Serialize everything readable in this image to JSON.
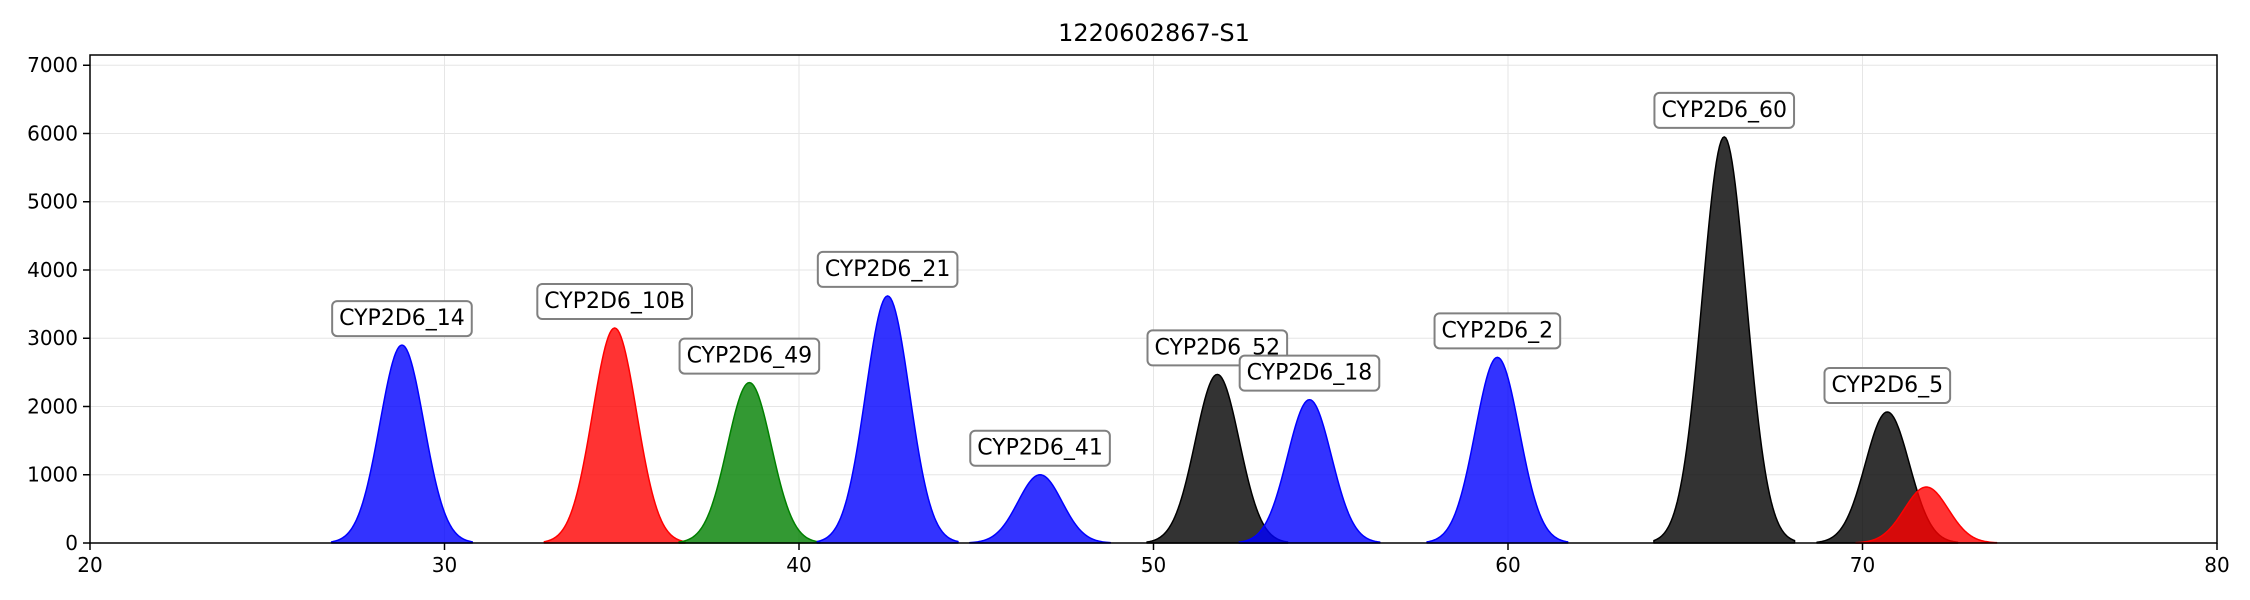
{
  "chart_data": {
    "type": "area",
    "title": "1220602867-S1",
    "xlabel": "",
    "ylabel": "",
    "xlim": [
      20,
      80
    ],
    "ylim": [
      0,
      7150
    ],
    "xticks": [
      20,
      30,
      40,
      50,
      60,
      70,
      80
    ],
    "yticks": [
      0,
      1000,
      2000,
      3000,
      4000,
      5000,
      6000,
      7000
    ],
    "grid": true,
    "legend": "none",
    "colors": {
      "blue": "#0000ff",
      "red": "#ff0000",
      "green": "#008000",
      "black": "#000000"
    },
    "peaks": [
      {
        "label": "CYP2D6_14",
        "center": 28.8,
        "height": 2900,
        "sigma": 0.62,
        "color": "#0000ff"
      },
      {
        "label": "CYP2D6_10B",
        "center": 34.8,
        "height": 3150,
        "sigma": 0.62,
        "color": "#ff0000"
      },
      {
        "label": "CYP2D6_49",
        "center": 38.6,
        "height": 2350,
        "sigma": 0.62,
        "color": "#008000"
      },
      {
        "label": "CYP2D6_21",
        "center": 42.5,
        "height": 3620,
        "sigma": 0.62,
        "color": "#0000ff"
      },
      {
        "label": "CYP2D6_41",
        "center": 46.8,
        "height": 1000,
        "sigma": 0.62,
        "color": "#0000ff"
      },
      {
        "label": "CYP2D6_52",
        "center": 51.8,
        "height": 2470,
        "sigma": 0.62,
        "color": "#000000"
      },
      {
        "label": "CYP2D6_18",
        "center": 54.4,
        "height": 2100,
        "sigma": 0.62,
        "color": "#0000ff"
      },
      {
        "label": "CYP2D6_2",
        "center": 59.7,
        "height": 2720,
        "sigma": 0.62,
        "color": "#0000ff"
      },
      {
        "label": "CYP2D6_60",
        "center": 66.1,
        "height": 5950,
        "sigma": 0.62,
        "color": "#000000"
      },
      {
        "label": "CYP2D6_5",
        "center": 70.7,
        "height": 1920,
        "sigma": 0.62,
        "color": "#000000"
      },
      {
        "label": "",
        "center": 71.8,
        "height": 820,
        "sigma": 0.62,
        "color": "#ff0000"
      }
    ]
  }
}
